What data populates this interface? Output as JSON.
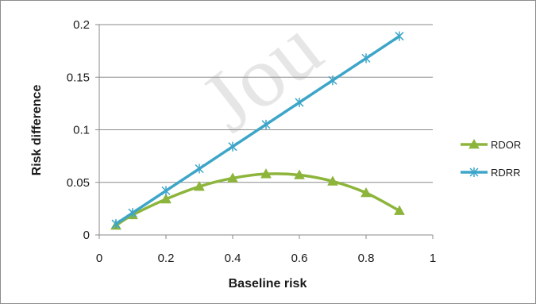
{
  "watermark_text": "Jou",
  "chart_data": {
    "type": "line",
    "title": "",
    "xlabel": "Baseline risk",
    "ylabel": "Risk difference",
    "xlim": [
      0,
      1
    ],
    "ylim": [
      0,
      0.2
    ],
    "x_ticks": [
      "0",
      "0.2",
      "0.4",
      "0.6",
      "0.8",
      "1"
    ],
    "y_ticks": [
      "0",
      "0.05",
      "0.1",
      "0.15",
      "0.2"
    ],
    "grid": "horizontal major",
    "legend_position": "right",
    "series": [
      {
        "name": "RDOR",
        "color": "#8db53c",
        "marker": "triangle",
        "smooth": true,
        "x": [
          0.05,
          0.1,
          0.2,
          0.3,
          0.4,
          0.5,
          0.6,
          0.7,
          0.8,
          0.9
        ],
        "y": [
          0.009,
          0.019,
          0.034,
          0.046,
          0.054,
          0.058,
          0.057,
          0.051,
          0.04,
          0.023
        ]
      },
      {
        "name": "RDRR",
        "color": "#3da5c8",
        "marker": "asterisk",
        "smooth": false,
        "x": [
          0.05,
          0.1,
          0.2,
          0.3,
          0.4,
          0.5,
          0.6,
          0.7,
          0.8,
          0.9
        ],
        "y": [
          0.0105,
          0.021,
          0.042,
          0.063,
          0.084,
          0.105,
          0.126,
          0.147,
          0.168,
          0.189
        ]
      }
    ]
  }
}
